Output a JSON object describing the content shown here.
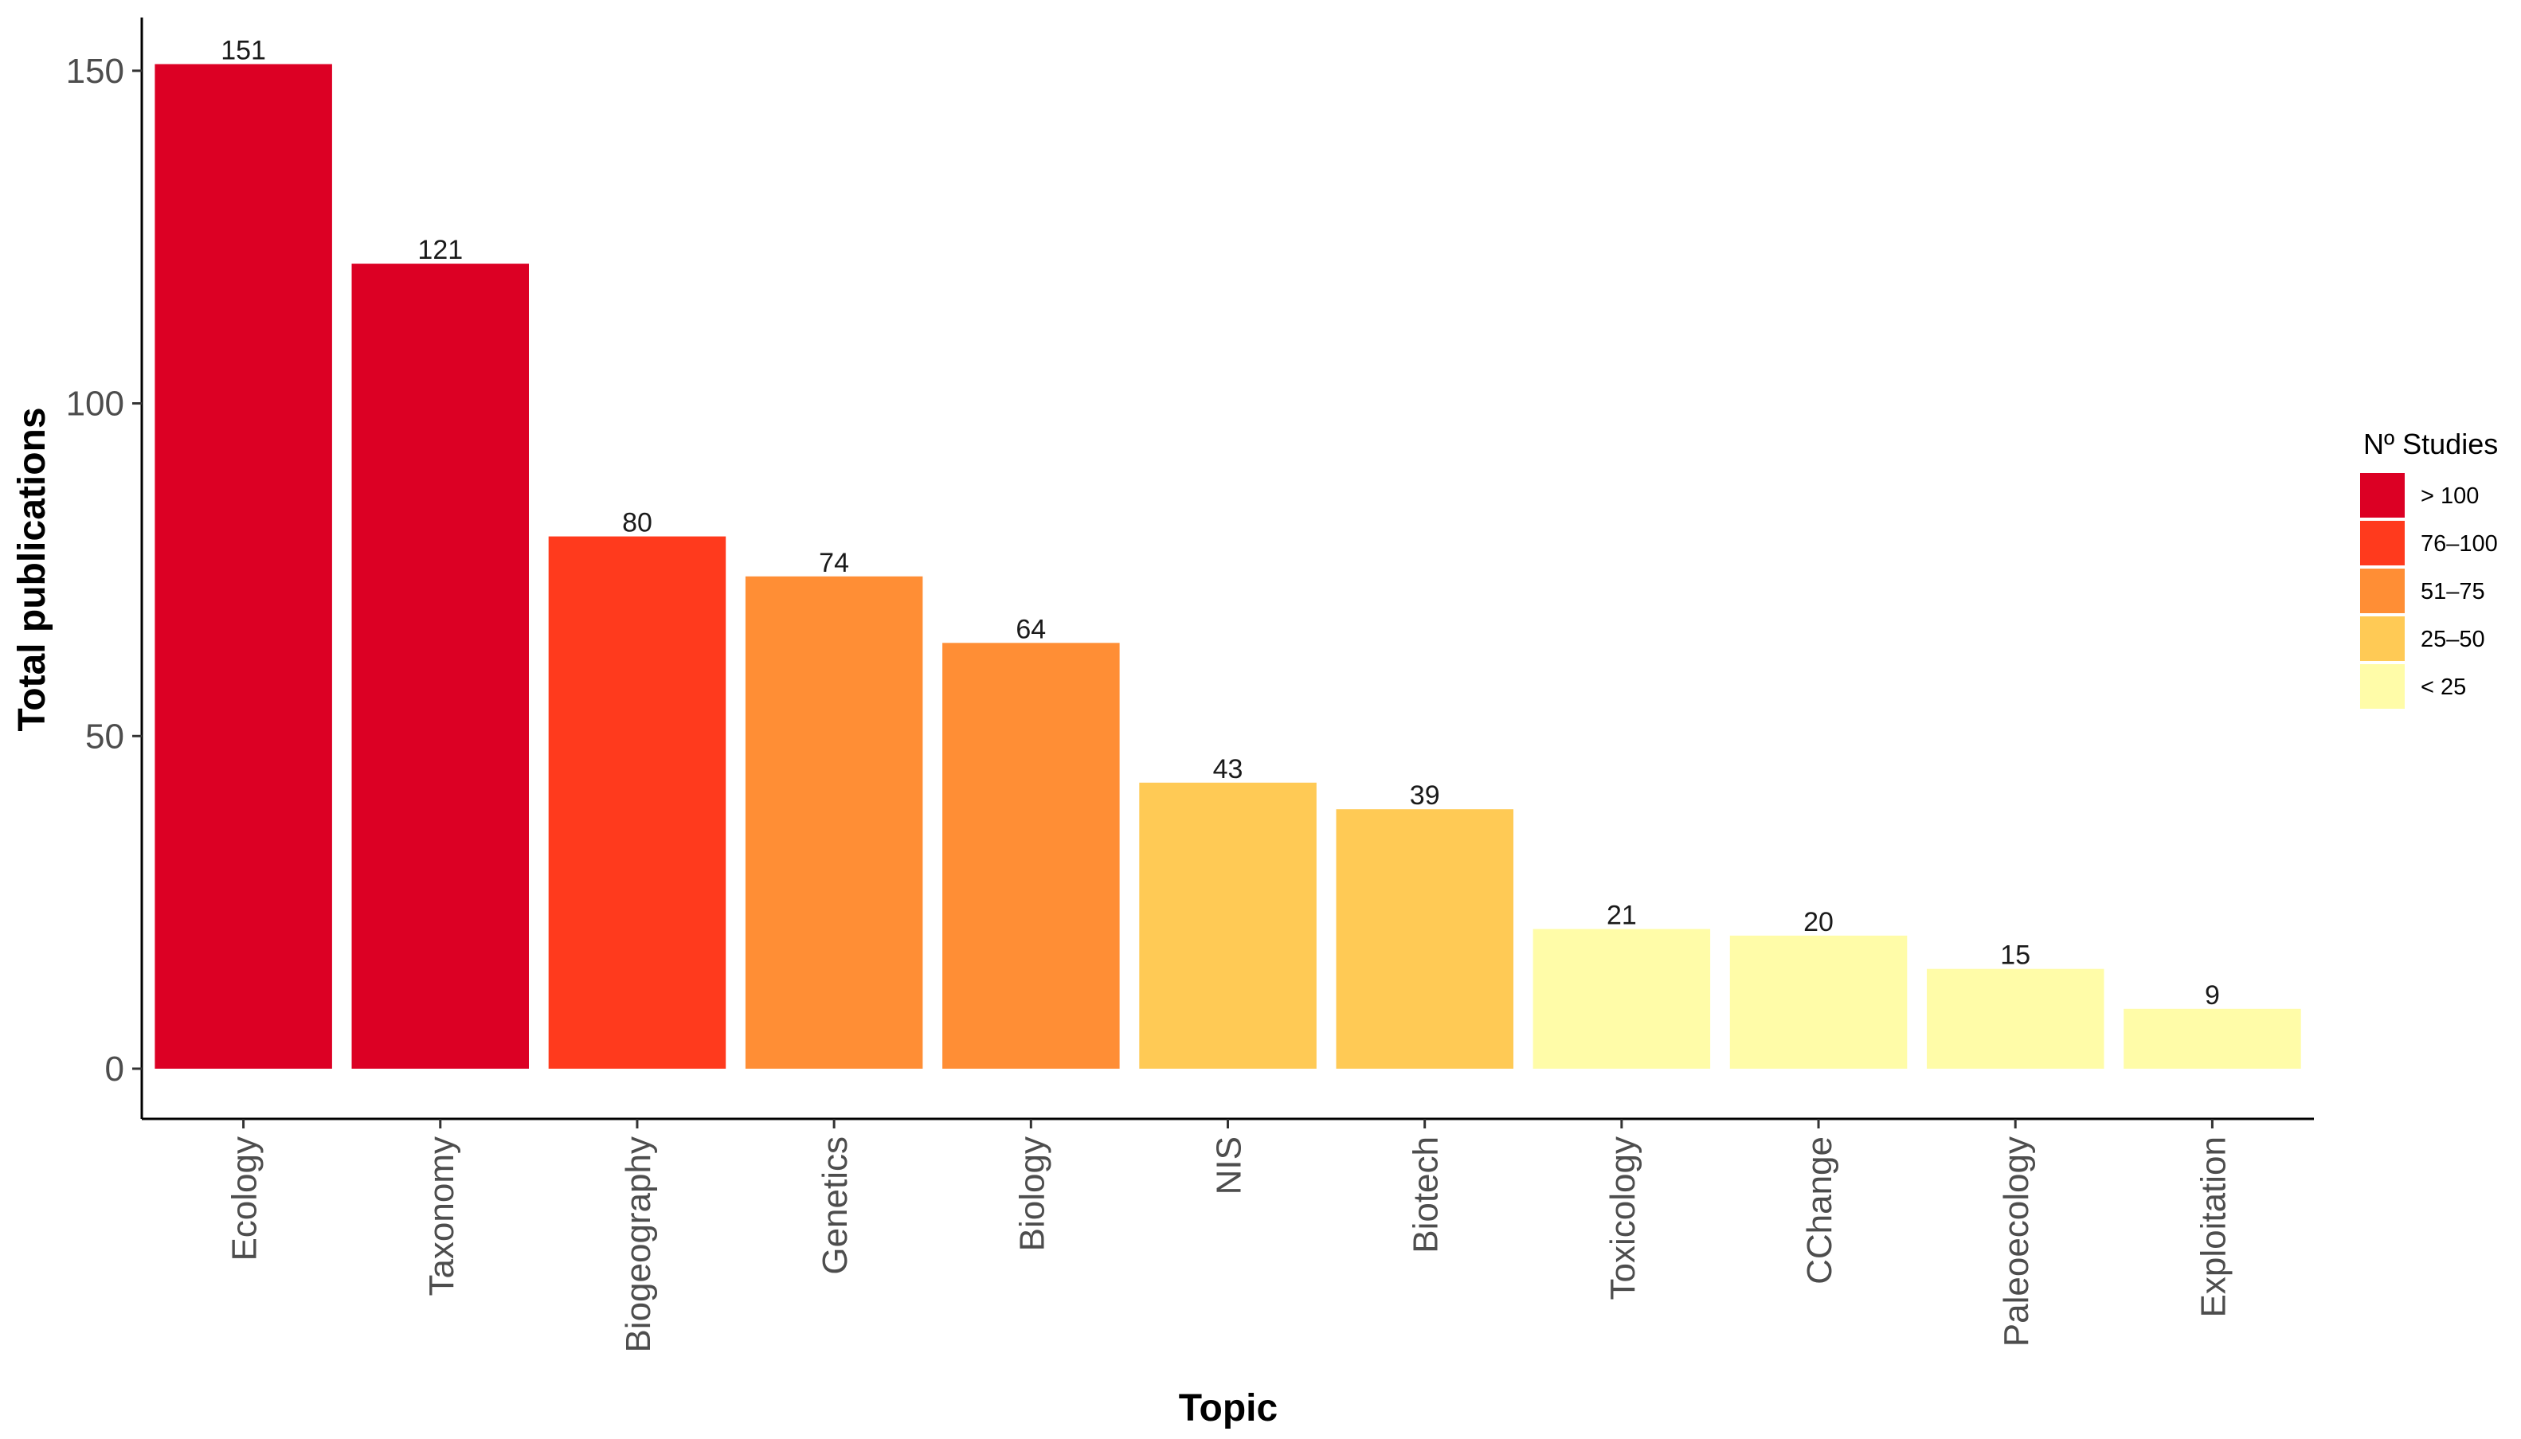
{
  "chart_data": {
    "type": "bar",
    "title": "",
    "xlabel": "Topic",
    "ylabel": "Total publications",
    "categories": [
      "Ecology",
      "Taxonomy",
      "Biogeography",
      "Genetics",
      "Biology",
      "NIS",
      "Biotech",
      "Toxicology",
      "CChange",
      "Paleoecology",
      "Exploitation"
    ],
    "values": [
      151,
      121,
      80,
      74,
      64,
      43,
      39,
      21,
      20,
      15,
      9
    ],
    "value_labels": [
      "151",
      "121",
      "80",
      "74",
      "64",
      "43",
      "39",
      "21",
      "20",
      "15",
      "9"
    ],
    "bar_groups": [
      "> 100",
      "> 100",
      "76–100",
      "51–75",
      "51–75",
      "25–50",
      "25–50",
      "< 25",
      "< 25",
      "< 25",
      "< 25"
    ],
    "ylim": [
      0,
      158
    ],
    "yticks": [
      0,
      50,
      100,
      150
    ],
    "ytick_labels": [
      "0",
      "50",
      "100",
      "150"
    ],
    "grid": false,
    "legend": {
      "title": "Nº Studies",
      "placement": "right",
      "entries": [
        {
          "label": "> 100",
          "color": "#DC0024"
        },
        {
          "label": "76–100",
          "color": "#FF3A1D"
        },
        {
          "label": "51–75",
          "color": "#FF8E35"
        },
        {
          "label": "25–50",
          "color": "#FFCA55"
        },
        {
          "label": "< 25",
          "color": "#FFFCA8"
        }
      ]
    }
  }
}
